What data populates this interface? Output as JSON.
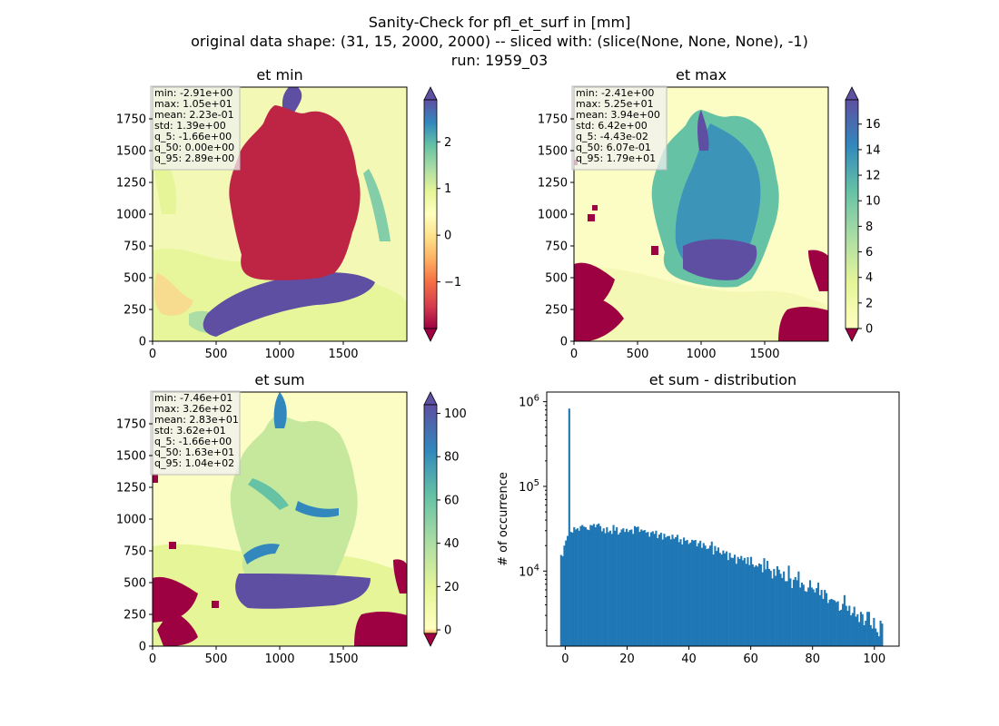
{
  "figure": {
    "title_lines": [
      "Sanity-Check for pfl_et_surf in [mm]",
      "original data shape: (31, 15, 2000, 2000) -- sliced with: (slice(None, None, None), -1)",
      "run: 1959_03"
    ]
  },
  "chart_data": [
    {
      "type": "heatmap",
      "title": "et min",
      "colormap": "Spectral",
      "x_ticks": [
        "0",
        "500",
        "1000",
        "1500"
      ],
      "y_ticks": [
        "0",
        "250",
        "500",
        "750",
        "1000",
        "1250",
        "1500",
        "1750"
      ],
      "xlim": [
        0,
        2000
      ],
      "ylim": [
        0,
        2000
      ],
      "colorbar": {
        "min": -2.0,
        "max": 2.9,
        "ticks": [
          "−1",
          "0",
          "1",
          "2"
        ],
        "tick_values": [
          -1,
          0,
          1,
          2
        ],
        "extend": "both"
      },
      "stats": [
        "min: -2.91e+00",
        "max: 1.05e+01",
        "mean: 2.23e-01",
        "std: 1.39e+00",
        "q_5: -1.66e+00",
        "q_50: 0.00e+00",
        "q_95: 2.89e+00"
      ]
    },
    {
      "type": "heatmap",
      "title": "et max",
      "colormap": "Spectral",
      "x_ticks": [
        "0",
        "500",
        "1000",
        "1500"
      ],
      "y_ticks": [
        "0",
        "250",
        "500",
        "750",
        "1000",
        "1250",
        "1500",
        "1750"
      ],
      "xlim": [
        0,
        2000
      ],
      "ylim": [
        0,
        2000
      ],
      "colorbar": {
        "min": 0,
        "max": 17.9,
        "ticks": [
          "0",
          "2",
          "4",
          "6",
          "8",
          "10",
          "12",
          "14",
          "16"
        ],
        "tick_values": [
          0,
          2,
          4,
          6,
          8,
          10,
          12,
          14,
          16
        ],
        "extend": "both"
      },
      "stats": [
        "min: -2.41e+00",
        "max: 5.25e+01",
        "mean: 3.94e+00",
        "std: 6.42e+00",
        "q_5: -4.43e-02",
        "q_50: 6.07e-01",
        "q_95: 1.79e+01"
      ]
    },
    {
      "type": "heatmap",
      "title": "et sum",
      "colormap": "Spectral",
      "x_ticks": [
        "0",
        "500",
        "1000",
        "1500"
      ],
      "y_ticks": [
        "0",
        "250",
        "500",
        "750",
        "1000",
        "1250",
        "1500",
        "1750"
      ],
      "xlim": [
        0,
        2000
      ],
      "ylim": [
        0,
        2000
      ],
      "colorbar": {
        "min": -1.66,
        "max": 104,
        "ticks": [
          "0",
          "20",
          "40",
          "60",
          "80",
          "100"
        ],
        "tick_values": [
          0,
          20,
          40,
          60,
          80,
          100
        ],
        "extend": "both"
      },
      "stats": [
        "min: -7.46e+01",
        "max: 3.26e+02",
        "mean: 2.83e+01",
        "std: 3.62e+01",
        "q_5: -1.66e+00",
        "q_50: 1.63e+01",
        "q_95: 1.04e+02"
      ]
    },
    {
      "type": "bar",
      "title": "et sum - distribution",
      "ylabel": "# of occurrence",
      "xlabel": "",
      "y_scale": "log",
      "xlim": [
        -6,
        108
      ],
      "ylim": [
        1300,
        1300000
      ],
      "x_ticks": [
        "0",
        "20",
        "40",
        "60",
        "80",
        "100"
      ],
      "x_tick_values": [
        0,
        20,
        40,
        60,
        80,
        100
      ],
      "y_ticks": [
        {
          "base": "10",
          "exp": "4",
          "value": 10000
        },
        {
          "base": "10",
          "exp": "5",
          "value": 100000
        },
        {
          "base": "10",
          "exp": "6",
          "value": 1000000
        }
      ],
      "bar_color": "#1f77b4",
      "bin_start": -1.66,
      "bin_width": 0.53,
      "counts": [
        15500,
        15000,
        20000,
        23000,
        26000,
        830000,
        29000,
        28500,
        33000,
        31000,
        32000,
        30000,
        34000,
        35000,
        33500,
        33000,
        31000,
        30500,
        35000,
        34500,
        36000,
        33000,
        35500,
        36500,
        34000,
        29500,
        32000,
        28000,
        33000,
        28800,
        30000,
        27500,
        35000,
        30000,
        33000,
        27000,
        28500,
        31000,
        32000,
        29000,
        31500,
        29000,
        30500,
        31000,
        27500,
        34000,
        33000,
        33500,
        29000,
        31000,
        30000,
        30500,
        28500,
        29000,
        25500,
        28700,
        29500,
        27500,
        30000,
        24500,
        27000,
        28400,
        23600,
        27600,
        25000,
        25800,
        26000,
        23700,
        26900,
        24100,
        25100,
        26800,
        22000,
        23800,
        20600,
        24900,
        22800,
        23300,
        20900,
        21700,
        23400,
        22900,
        23300,
        19600,
        21400,
        22800,
        18800,
        21400,
        20000,
        18200,
        18500,
        20000,
        22300,
        15700,
        19800,
        17300,
        19000,
        16400,
        15700,
        17500,
        16200,
        17100,
        13500,
        16400,
        14400,
        14300,
        15600,
        12200,
        14700,
        13900,
        15100,
        13400,
        14300,
        12200,
        14600,
        11800,
        14700,
        12000,
        11200,
        11700,
        11300,
        12300,
        12000,
        9700,
        14200,
        10500,
        13200,
        10600,
        10100,
        8200,
        10600,
        8800,
        11400,
        10400,
        9300,
        8300,
        9900,
        7600,
        7600,
        11600,
        8200,
        6300,
        7900,
        8500,
        7800,
        9900,
        6400,
        7300,
        6900,
        5800,
        5700,
        6400,
        7800,
        6400,
        6100,
        5600,
        6300,
        7300,
        5200,
        6000,
        4700,
        6000,
        5500,
        4200,
        4600,
        4700,
        4600,
        4500,
        4300,
        4400,
        3400,
        3500,
        4100,
        5200,
        3900,
        3400,
        3900,
        3000,
        3200,
        3800,
        2900,
        3100,
        2500,
        3300,
        3100,
        2300,
        2600,
        3300,
        3300,
        2300,
        2100,
        2800,
        2100,
        1900,
        1700,
        2600,
        2400
      ]
    }
  ]
}
